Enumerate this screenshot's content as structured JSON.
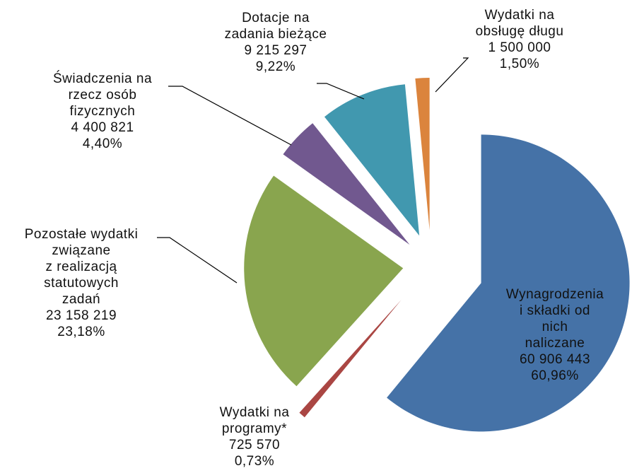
{
  "chart_data": {
    "type": "pie",
    "categories": [
      "Wynagrodzenia\ni składki od nich\nnaliczane",
      "Wydatki na\nprogramy*",
      "Pozostałe wydatki\nzwiązane\nz realizacją\nstatutowych\nzadań",
      "Świadczenia na\nrzecz osób\nfizycznych",
      "Dotacje na\nzadania bieżące",
      "Wydatki na\nobsługę długu"
    ],
    "values": [
      60906443,
      725570,
      23158219,
      4400821,
      9215297,
      1500000
    ],
    "value_labels": [
      "60 906 443",
      "725 570",
      "23 158 219",
      "4 400 821",
      "9 215 297",
      "1 500 000"
    ],
    "percents": [
      60.96,
      0.73,
      23.18,
      4.4,
      9.22,
      1.5
    ],
    "percent_labels": [
      "60,96%",
      "0,73%",
      "23,18%",
      "4,40%",
      "9,22%",
      "1,50%"
    ],
    "colors": [
      "#4572a7",
      "#aa4643",
      "#89a54e",
      "#71588f",
      "#4198af",
      "#db843d"
    ]
  }
}
